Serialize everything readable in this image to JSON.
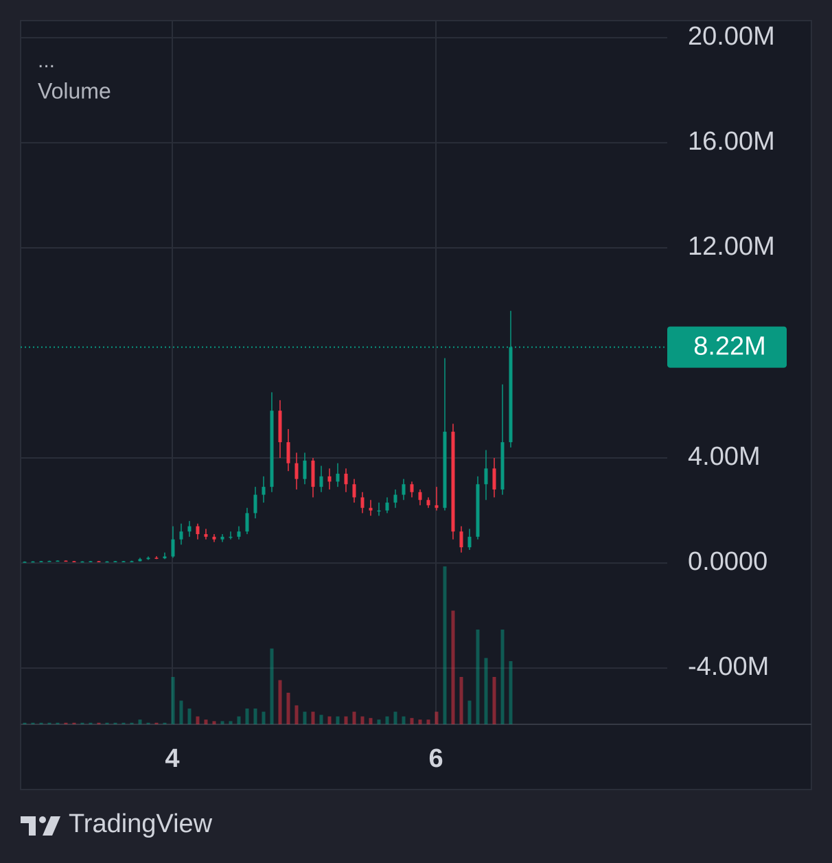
{
  "chart_data": {
    "type": "candlestick",
    "study_menu": "...",
    "volume_label": "Volume",
    "x": [
      2.88,
      2.9425,
      3.005,
      3.0675,
      3.13,
      3.1925,
      3.255,
      3.3175,
      3.38,
      3.4425,
      3.505,
      3.5675,
      3.63,
      3.6925,
      3.755,
      3.8175,
      3.88,
      3.9425,
      4.005,
      4.0675,
      4.13,
      4.1925,
      4.255,
      4.3175,
      4.38,
      4.4425,
      4.505,
      4.5675,
      4.63,
      4.6925,
      4.755,
      4.8175,
      4.88,
      4.9425,
      5.005,
      5.0675,
      5.13,
      5.1925,
      5.255,
      5.3175,
      5.38,
      5.4425,
      5.505,
      5.5675,
      5.63,
      5.6925,
      5.755,
      5.8175,
      5.88,
      5.9425,
      6.005,
      6.0675,
      6.13,
      6.1925,
      6.255,
      6.3175,
      6.38,
      6.4425,
      6.505,
      6.5675
    ],
    "open": [
      50000,
      50000,
      60000,
      70000,
      80000,
      90000,
      70000,
      60000,
      60000,
      70000,
      60000,
      60000,
      70000,
      70000,
      70000,
      150000,
      200000,
      180000,
      250000,
      900000,
      1200000,
      1400000,
      1100000,
      1000000,
      900000,
      1000000,
      1000000,
      1200000,
      1900000,
      2600000,
      2900000,
      5800000,
      4600000,
      3800000,
      3200000,
      3900000,
      2900000,
      3300000,
      3100000,
      3400000,
      3000000,
      2500000,
      2100000,
      2000000,
      2000000,
      2300000,
      2600000,
      3000000,
      2700000,
      2400000,
      2200000,
      2100000,
      5000000,
      1200000,
      600000,
      1000000,
      3000000,
      3600000,
      2800000,
      4600000
    ],
    "high": [
      60000,
      70000,
      80000,
      90000,
      100000,
      100000,
      80000,
      70000,
      80000,
      80000,
      70000,
      80000,
      80000,
      90000,
      200000,
      250000,
      260000,
      400000,
      1400000,
      1500000,
      1600000,
      1500000,
      1300000,
      1100000,
      1100000,
      1200000,
      1400000,
      2100000,
      2900000,
      3300000,
      6500000,
      6200000,
      5100000,
      4200000,
      4200000,
      4000000,
      3700000,
      3600000,
      3800000,
      3600000,
      3200000,
      2700000,
      2400000,
      2300000,
      2500000,
      2800000,
      3200000,
      3100000,
      2800000,
      2500000,
      2900000,
      7800000,
      5300000,
      1400000,
      1300000,
      3300000,
      4300000,
      4000000,
      6800000,
      9600000
    ],
    "low": [
      40000,
      40000,
      50000,
      60000,
      70000,
      60000,
      50000,
      50000,
      50000,
      50000,
      50000,
      50000,
      60000,
      60000,
      60000,
      120000,
      150000,
      150000,
      200000,
      700000,
      1000000,
      900000,
      900000,
      800000,
      800000,
      900000,
      900000,
      1100000,
      1700000,
      2300000,
      2700000,
      4000000,
      3500000,
      2800000,
      3000000,
      2500000,
      2700000,
      2800000,
      2900000,
      2700000,
      2300000,
      1900000,
      1800000,
      1800000,
      1900000,
      2100000,
      2400000,
      2500000,
      2200000,
      2100000,
      2000000,
      2000000,
      900000,
      400000,
      500000,
      900000,
      2400000,
      2500000,
      2600000,
      4400000
    ],
    "close": [
      50000,
      60000,
      70000,
      80000,
      90000,
      70000,
      60000,
      60000,
      70000,
      60000,
      60000,
      70000,
      70000,
      70000,
      150000,
      200000,
      180000,
      250000,
      900000,
      1200000,
      1400000,
      1100000,
      1000000,
      900000,
      1000000,
      1000000,
      1200000,
      1900000,
      2600000,
      2900000,
      5800000,
      4600000,
      3800000,
      3200000,
      3900000,
      2900000,
      3300000,
      3100000,
      3400000,
      3000000,
      2500000,
      2100000,
      2000000,
      2000000,
      2300000,
      2600000,
      3000000,
      2700000,
      2400000,
      2200000,
      2100000,
      5000000,
      1200000,
      600000,
      1000000,
      3000000,
      3600000,
      2800000,
      4600000,
      8220000
    ],
    "volume": [
      1,
      1,
      1,
      1,
      1,
      1,
      1,
      1,
      1,
      1,
      1,
      1,
      1,
      1,
      3,
      1,
      1,
      1,
      30,
      15,
      10,
      5,
      3,
      2,
      2,
      2,
      5,
      10,
      10,
      8,
      48,
      28,
      20,
      12,
      8,
      8,
      6,
      5,
      5,
      5,
      8,
      5,
      4,
      3,
      5,
      8,
      5,
      4,
      3,
      3,
      8,
      100,
      72,
      30,
      15,
      60,
      42,
      30,
      60,
      40
    ],
    "up_color": "#089981",
    "down_color": "#f23645",
    "last_price": {
      "value": 8220000,
      "label": "8.22M"
    },
    "xlim": [
      2.849,
      7.755
    ],
    "xticks": [
      4,
      6
    ],
    "ylim": [
      -6140000,
      20650000
    ],
    "yticks": [
      {
        "value": -4000000,
        "label": "-4.00M"
      },
      {
        "value": 0,
        "label": "0.0000"
      },
      {
        "value": 4000000,
        "label": "4.00M"
      },
      {
        "value": 12000000,
        "label": "12.00M"
      },
      {
        "value": 16000000,
        "label": "16.00M"
      },
      {
        "value": 20000000,
        "label": "20.00M"
      }
    ],
    "grid": true
  },
  "brand": "TradingView"
}
